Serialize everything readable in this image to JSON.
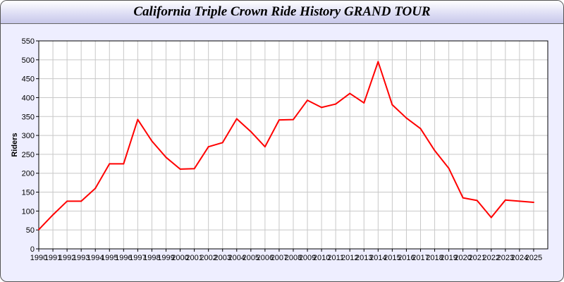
{
  "chart_data": {
    "type": "line",
    "title": "California Triple Crown Ride History GRAND TOUR",
    "xlabel": "",
    "ylabel": "Riders",
    "x": [
      1990,
      1991,
      1992,
      1993,
      1994,
      1995,
      1996,
      1997,
      1998,
      1999,
      2000,
      2001,
      2002,
      2003,
      2004,
      2005,
      2006,
      2007,
      2008,
      2009,
      2010,
      2011,
      2012,
      2013,
      2014,
      2015,
      2016,
      2017,
      2018,
      2019,
      2020,
      2021,
      2022,
      2023,
      2024,
      2025
    ],
    "series": [
      {
        "values": [
          51,
          90,
          126,
          126,
          160,
          225,
          225,
          342,
          285,
          242,
          211,
          212,
          270,
          281,
          344,
          310,
          270,
          341,
          342,
          393,
          374,
          383,
          411,
          386,
          495,
          381,
          346,
          318,
          260,
          213,
          135,
          128,
          83,
          129,
          126,
          123
        ],
        "color": "#ff0000"
      }
    ],
    "xlim": [
      1990,
      2026
    ],
    "ylim": [
      0,
      550
    ],
    "yticks": [
      0,
      50,
      100,
      150,
      200,
      250,
      300,
      350,
      400,
      450,
      500,
      550
    ],
    "grid": true,
    "background": "#eeeeff"
  }
}
